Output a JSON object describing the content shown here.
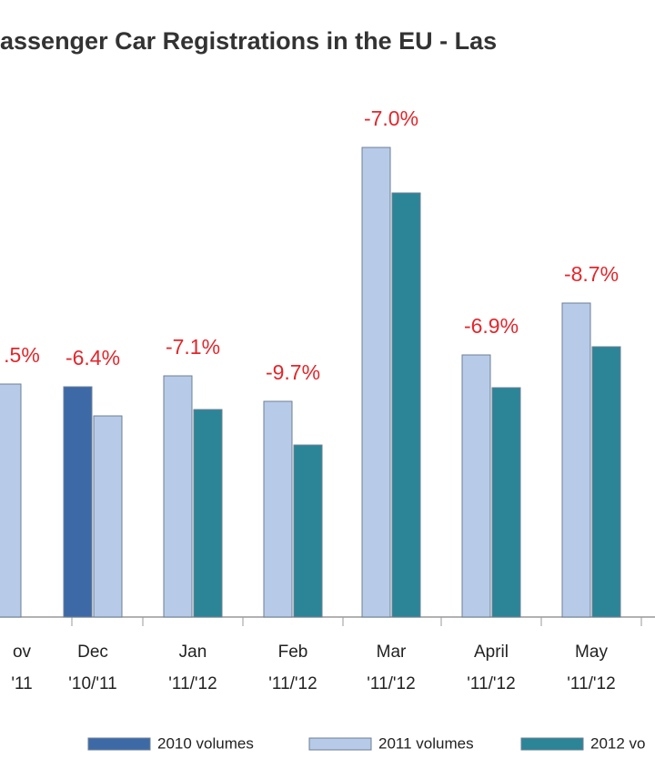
{
  "chart_data": {
    "type": "bar",
    "title": "assenger Car Registrations in the EU - Las",
    "categories": [
      "ov",
      "Dec",
      "Jan",
      "Feb",
      "Mar",
      "April",
      "May"
    ],
    "periods": [
      "'11",
      "'10/'11",
      "'11/'12",
      "'11/'12",
      "'11/'12",
      "'11/'12",
      "'11/'12"
    ],
    "change_labels": [
      ".5%",
      "-6.4%",
      "-7.1%",
      "-9.7%",
      "-7.0%",
      "-6.9%",
      "-8.7%"
    ],
    "series": [
      {
        "name": "2010 volumes",
        "color": "#3d6aa6",
        "values": [
          null,
          253,
          null,
          null,
          null,
          null,
          null
        ]
      },
      {
        "name": "2011 volumes",
        "color": "#b7cbe8",
        "values": [
          256,
          221,
          265,
          237,
          516,
          288,
          345
        ]
      },
      {
        "name": "2012 vo",
        "color": "#2b8597",
        "values": [
          null,
          null,
          228,
          189,
          466,
          252,
          297
        ]
      }
    ],
    "ylim": [
      0,
      520
    ]
  }
}
